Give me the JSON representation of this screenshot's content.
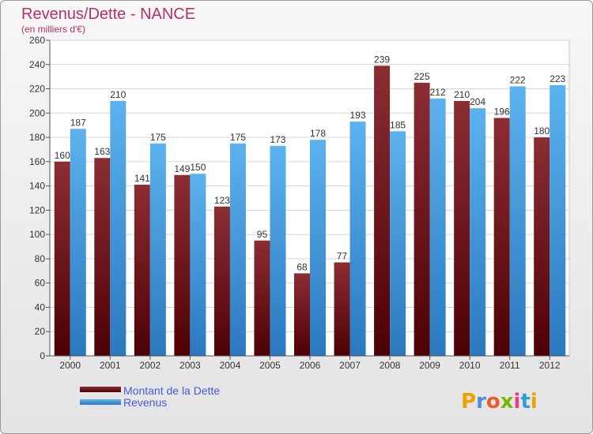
{
  "title": "Revenus/Dette - NANCE",
  "subtitle": "(en milliers d'€)",
  "logo": "Proxiti",
  "colors": {
    "dette_top": "#8b2d33",
    "dette_bottom": "#4d0005",
    "revenus_top": "#5cb2ee",
    "revenus_bottom": "#2b78bf",
    "title": "#b5306a",
    "legend_text": "#4a5ad6"
  },
  "chart_data": {
    "type": "bar",
    "categories": [
      "2000",
      "2001",
      "2002",
      "2003",
      "2004",
      "2005",
      "2006",
      "2007",
      "2008",
      "2009",
      "2010",
      "2011",
      "2012"
    ],
    "series": [
      {
        "name": "Montant de la Dette",
        "values": [
          160,
          163,
          141,
          149,
          123,
          95,
          68,
          77,
          239,
          225,
          210,
          196,
          180
        ]
      },
      {
        "name": "Revenus",
        "values": [
          187,
          210,
          175,
          150,
          175,
          173,
          178,
          193,
          185,
          212,
          204,
          222,
          223
        ]
      }
    ],
    "title": "Revenus/Dette - NANCE",
    "subtitle": "(en milliers d'€)",
    "ylim": [
      0,
      260
    ],
    "yticks": [
      0,
      20,
      40,
      60,
      80,
      100,
      120,
      140,
      160,
      180,
      200,
      220,
      240,
      260
    ],
    "grid": true,
    "legend": "bottom-left"
  }
}
